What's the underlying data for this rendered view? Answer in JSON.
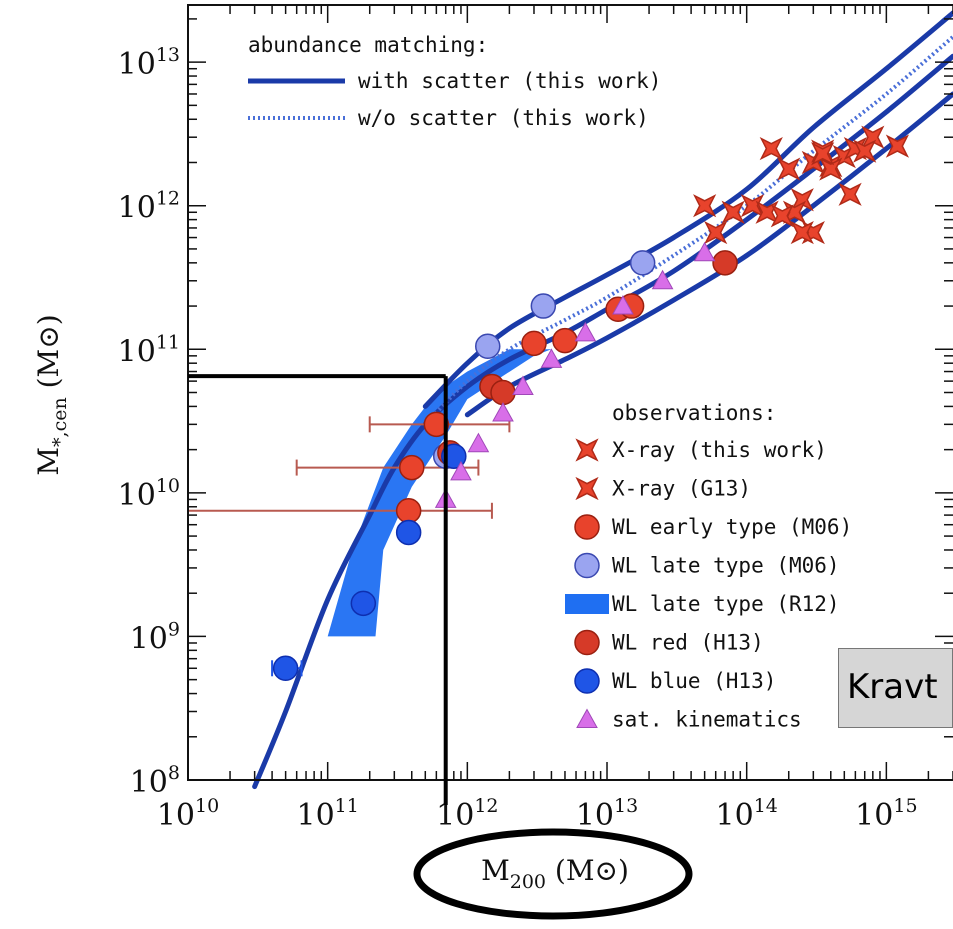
{
  "chart_data": {
    "type": "scatter",
    "title": "",
    "xlabel": {
      "main": "M",
      "sub": "200",
      "unit": "(M⊙)"
    },
    "ylabel": {
      "main": "M",
      "sub": "*,cen",
      "unit": "(M⊙)"
    },
    "xscale": "log",
    "yscale": "log",
    "xlim": [
      10000000000.0,
      3000000000000000.0
    ],
    "ylim": [
      100000000.0,
      25000000000000.0
    ],
    "xticks": [
      {
        "value": 10000000000.0,
        "base": "10",
        "exp": "10"
      },
      {
        "value": 100000000000.0,
        "base": "10",
        "exp": "11"
      },
      {
        "value": 1000000000000.0,
        "base": "10",
        "exp": "12"
      },
      {
        "value": 10000000000000.0,
        "base": "10",
        "exp": "13"
      },
      {
        "value": 100000000000000.0,
        "base": "10",
        "exp": "14"
      },
      {
        "value": 1000000000000000.0,
        "base": "10",
        "exp": "15"
      }
    ],
    "yticks": [
      {
        "value": 100000000.0,
        "base": "10",
        "exp": "8"
      },
      {
        "value": 1000000000.0,
        "base": "10",
        "exp": "9"
      },
      {
        "value": 10000000000.0,
        "base": "10",
        "exp": "10"
      },
      {
        "value": 100000000000.0,
        "base": "10",
        "exp": "11"
      },
      {
        "value": 1000000000000.0,
        "base": "10",
        "exp": "12"
      },
      {
        "value": 10000000000000.0,
        "base": "10",
        "exp": "13"
      }
    ],
    "legend_top": {
      "header": "abundance matching:",
      "entries": [
        {
          "label": "with scatter (this work)",
          "style": "solid"
        },
        {
          "label": "w/o scatter (this work)",
          "style": "dotted"
        }
      ]
    },
    "legend_obs": {
      "header": "observations:",
      "entries": [
        {
          "label": "X-ray (this work)",
          "marker": "star"
        },
        {
          "label": "X-ray (G13)",
          "marker": "star"
        },
        {
          "label": "WL early type (M06)",
          "marker": "circle-red"
        },
        {
          "label": "WL late type (M06)",
          "marker": "circle-lightblue"
        },
        {
          "label": "WL late type (R12)",
          "marker": "band"
        },
        {
          "label": "WL red (H13)",
          "marker": "circle-darkred"
        },
        {
          "label": "WL blue (H13)",
          "marker": "circle-blue"
        },
        {
          "label": "sat. kinematics",
          "marker": "triangle"
        }
      ]
    },
    "colors": {
      "solid_line": "#1a3aa8",
      "dotted_line": "#4a6fd8",
      "xray": "#e8432c",
      "wl_early": "#e8432c",
      "wl_late_m06": "#9aa4f0",
      "band": "#1f6ff2",
      "wl_red": "#d63a28",
      "wl_blue": "#1f55e6",
      "sat_kin": "#d86ee8",
      "errorbar": "#b85a50",
      "annotation": "#000000"
    },
    "series": [
      {
        "name": "with scatter (this work)",
        "kind": "line",
        "x": [
          30000000000.0,
          50000000000.0,
          100000000000.0,
          200000000000.0,
          300000000000.0,
          500000000000.0,
          1000000000000.0,
          2000000000000.0,
          5000000000000.0,
          10000000000000.0,
          30000000000000.0,
          100000000000000.0,
          300000000000000.0,
          1000000000000000.0,
          3000000000000000.0
        ],
        "y": [
          90000000.0,
          300000000.0,
          1800000000.0,
          7000000000.0,
          15000000000.0,
          30000000000.0,
          55000000000.0,
          85000000000.0,
          130000000000.0,
          190000000000.0,
          350000000000.0,
          800000000000.0,
          1800000000000.0,
          4500000000000.0,
          11000000000000.0
        ]
      },
      {
        "name": "with scatter upper",
        "kind": "line",
        "x": [
          500000000000.0,
          1000000000000.0,
          2000000000000.0,
          5000000000000.0,
          10000000000000.0,
          30000000000000.0,
          100000000000000.0,
          300000000000000.0,
          1000000000000000.0,
          3000000000000000.0
        ],
        "y": [
          40000000000.0,
          80000000000.0,
          140000000000.0,
          230000000000.0,
          330000000000.0,
          600000000000.0,
          1300000000000.0,
          3500000000000.0,
          9000000000000.0,
          22000000000000.0
        ]
      },
      {
        "name": "with scatter lower",
        "kind": "line",
        "x": [
          1000000000000.0,
          2000000000000.0,
          5000000000000.0,
          10000000000000.0,
          30000000000000.0,
          100000000000000.0,
          300000000000000.0,
          1000000000000000.0,
          3000000000000000.0
        ],
        "y": [
          35000000000.0,
          55000000000.0,
          85000000000.0,
          120000000000.0,
          220000000000.0,
          450000000000.0,
          1000000000000.0,
          2500000000000.0,
          6000000000000.0
        ]
      },
      {
        "name": "w/o scatter (this work)",
        "kind": "dotted",
        "x": [
          500000000000.0,
          1000000000000.0,
          2000000000000.0,
          5000000000000.0,
          10000000000000.0,
          30000000000000.0,
          100000000000000.0,
          300000000000000.0,
          1000000000000000.0,
          3000000000000000.0
        ],
        "y": [
          30000000000.0,
          60000000000.0,
          100000000000.0,
          160000000000.0,
          230000000000.0,
          450000000000.0,
          1000000000000.0,
          2400000000000.0,
          6000000000000.0,
          15000000000000.0
        ]
      },
      {
        "name": "X-ray (this work)",
        "kind": "star",
        "x": [
          150000000000000.0,
          200000000000000.0,
          250000000000000.0,
          300000000000000.0,
          350000000000000.0,
          400000000000000.0,
          500000000000000.0,
          600000000000000.0,
          800000000000000.0,
          1200000000000000.0,
          400000000000000.0,
          220000000000000.0,
          300000000000000.0
        ],
        "y": [
          2500000000000.0,
          1800000000000.0,
          1100000000000.0,
          2000000000000.0,
          2400000000000.0,
          1900000000000.0,
          2200000000000.0,
          2500000000000.0,
          3000000000000.0,
          2600000000000.0,
          1800000000000.0,
          900000000000.0,
          650000000000.0
        ]
      },
      {
        "name": "X-ray (G13)",
        "kind": "star",
        "x": [
          50000000000000.0,
          60000000000000.0,
          80000000000000.0,
          110000000000000.0,
          140000000000000.0,
          180000000000000.0,
          250000000000000.0,
          350000000000000.0,
          550000000000000.0,
          700000000000000.0
        ],
        "y": [
          1000000000000.0,
          650000000000.0,
          900000000000.0,
          1000000000000.0,
          900000000000.0,
          850000000000.0,
          650000000000.0,
          2300000000000.0,
          1200000000000.0,
          2400000000000.0
        ]
      },
      {
        "name": "WL early type (M06)",
        "kind": "circle-red",
        "x": [
          3000000000000.0,
          5000000000000.0,
          12000000000000.0,
          15000000000000.0,
          600000000000.0,
          400000000000.0,
          380000000000.0
        ],
        "y": [
          110000000000.0,
          115000000000.0,
          190000000000.0,
          200000000000.0,
          30000000000.0,
          15000000000.0,
          7500000000.0
        ],
        "xerr_lo": [
          null,
          null,
          null,
          null,
          200000000000.0,
          60000000000.0,
          10000000000.0
        ],
        "xerr_hi": [
          null,
          null,
          null,
          null,
          2000000000000.0,
          1200000000000.0,
          1500000000000.0
        ]
      },
      {
        "name": "WL late type (M06)",
        "kind": "circle-lightblue",
        "x": [
          1400000000000.0,
          3500000000000.0,
          18000000000000.0,
          700000000000.0
        ],
        "y": [
          105000000000.0,
          200000000000.0,
          400000000000.0,
          18000000000.0
        ]
      },
      {
        "name": "WL red (H13)",
        "kind": "circle-darkred",
        "x": [
          1500000000000.0,
          1800000000000.0,
          70000000000000.0,
          750000000000.0
        ],
        "y": [
          55000000000.0,
          50000000000.0,
          400000000000.0,
          19000000000.0
        ]
      },
      {
        "name": "WL blue (H13)",
        "kind": "circle-blue",
        "x": [
          50000000000.0,
          180000000000.0,
          380000000000.0,
          800000000000.0
        ],
        "y": [
          600000000.0,
          1700000000.0,
          5300000000.0,
          18000000000.0
        ],
        "xerr_lo": [
          40000000000.0,
          null,
          null,
          null
        ],
        "xerr_hi": [
          65000000000.0,
          null,
          null,
          null
        ]
      },
      {
        "name": "sat. kinematics",
        "kind": "triangle",
        "x": [
          700000000000.0,
          900000000000.0,
          1200000000000.0,
          1800000000000.0,
          2500000000000.0,
          4000000000000.0,
          7000000000000.0,
          13000000000000.0,
          25000000000000.0,
          50000000000000.0
        ],
        "y": [
          9000000000.0,
          14000000000.0,
          22000000000.0,
          36000000000.0,
          55000000000.0,
          85000000000.0,
          130000000000.0,
          200000000000.0,
          300000000000.0,
          470000000000.0
        ]
      }
    ],
    "band_R12": [
      [
        100000000000.0,
        1000000000.0
      ],
      [
        220000000000.0,
        1000000000.0
      ],
      [
        250000000000.0,
        4000000000.0
      ],
      [
        400000000000.0,
        11000000000.0
      ],
      [
        700000000000.0,
        25000000000.0
      ],
      [
        1000000000000.0,
        45000000000.0
      ],
      [
        3000000000000.0,
        90000000000.0
      ],
      [
        4000000000000.0,
        100000000000.0
      ],
      [
        2000000000000.0,
        100000000000.0
      ],
      [
        1000000000000.0,
        70000000000.0
      ],
      [
        600000000000.0,
        50000000000.0
      ],
      [
        400000000000.0,
        30000000000.0
      ],
      [
        250000000000.0,
        15000000000.0
      ],
      [
        150000000000.0,
        4000000000.0
      ]
    ],
    "annotation_box": {
      "x": [
        10000000000.0,
        700000000000.0
      ],
      "y_top": 65000000000.0
    },
    "annotation_ellipse": "around M200 (M⊙) axis title",
    "overlay_label": "Kravt"
  }
}
